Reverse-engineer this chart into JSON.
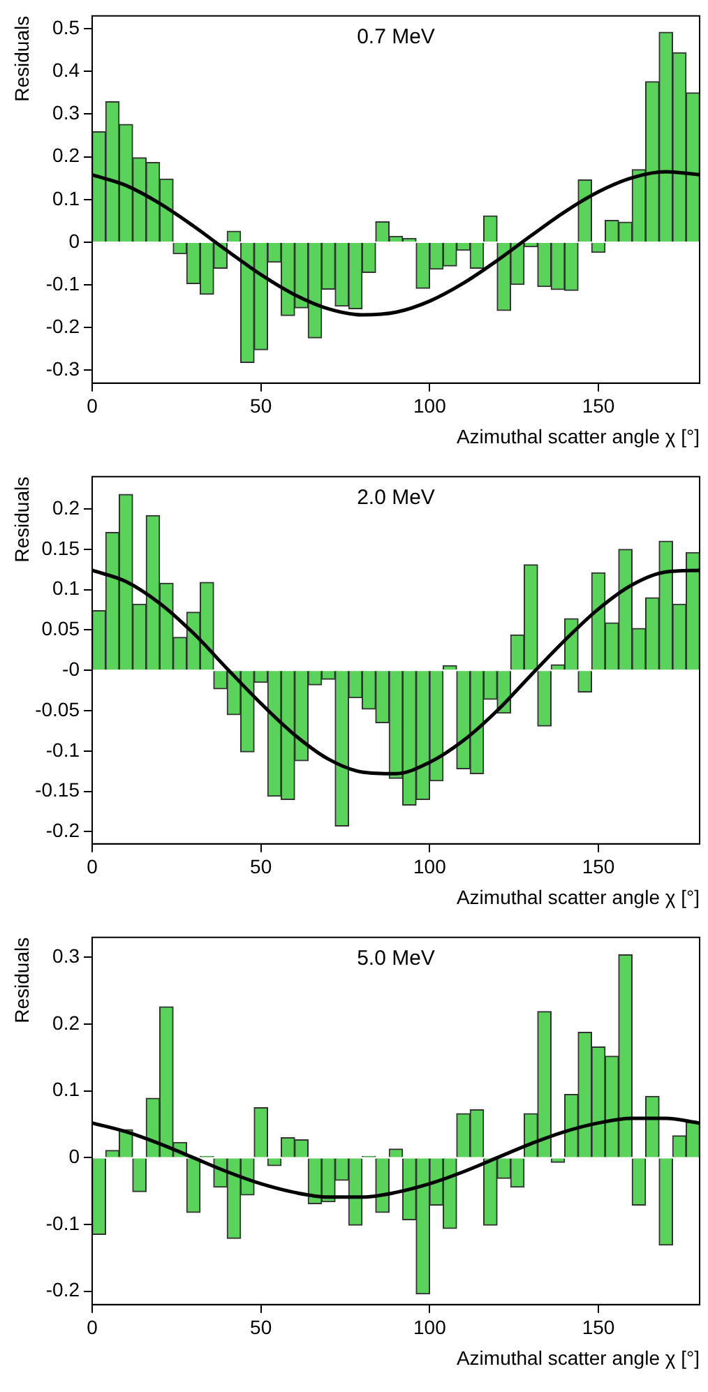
{
  "chart_data": [
    {
      "type": "histogram",
      "title": "0.7 MeV",
      "xlabel": "Azimuthal scatter angle χ [°]",
      "ylabel": "Residuals",
      "legend": false,
      "grid": false,
      "xlim": [
        0,
        180
      ],
      "xticks": [
        0,
        50,
        100,
        150
      ],
      "ylim": [
        -0.33,
        0.53
      ],
      "yticks": [
        -0.3,
        -0.2,
        -0.1,
        0,
        0.1,
        0.2,
        0.3,
        0.4,
        0.5
      ],
      "bins": [
        0,
        4,
        8,
        12,
        16,
        20,
        24,
        28,
        32,
        36,
        40,
        44,
        48,
        52,
        56,
        60,
        64,
        68,
        72,
        76,
        80,
        84,
        88,
        92,
        96,
        100,
        104,
        108,
        112,
        116,
        120,
        124,
        128,
        132,
        136,
        140,
        144,
        148,
        152,
        156,
        160,
        164,
        168,
        172,
        176,
        180
      ],
      "series": [
        {
          "color": "#59d359",
          "values": [
            0.259,
            0.329,
            0.276,
            0.198,
            0.187,
            0.148,
            -0.027,
            -0.097,
            -0.122,
            -0.061,
            0.026,
            -0.282,
            -0.252,
            -0.047,
            -0.172,
            -0.154,
            -0.224,
            -0.11,
            -0.15,
            -0.156,
            -0.071,
            0.048,
            0.014,
            0.009,
            -0.108,
            -0.063,
            -0.056,
            -0.019,
            -0.061,
            0.062,
            -0.16,
            -0.099,
            -0.011,
            -0.104,
            -0.111,
            -0.113,
            0.146,
            -0.024,
            0.051,
            0.047,
            0.17,
            0.376,
            0.492,
            0.444,
            0.35
          ]
        },
        {
          "type": "line",
          "color": "#000000",
          "x": [
            0,
            10,
            20,
            30,
            40,
            50,
            60,
            70,
            80,
            90,
            100,
            110,
            120,
            130,
            140,
            150,
            160,
            170,
            180
          ],
          "values": [
            0.158,
            0.133,
            0.091,
            0.038,
            -0.02,
            -0.076,
            -0.123,
            -0.156,
            -0.17,
            -0.164,
            -0.138,
            -0.096,
            -0.043,
            0.015,
            0.071,
            0.118,
            0.151,
            0.165,
            0.158
          ]
        }
      ]
    },
    {
      "type": "histogram",
      "title": "2.0 MeV",
      "xlabel": "Azimuthal scatter angle χ [°]",
      "ylabel": "Residuals",
      "legend": false,
      "grid": false,
      "xlim": [
        0,
        180
      ],
      "xticks": [
        0,
        50,
        100,
        150
      ],
      "ylim": [
        -0.215,
        0.24
      ],
      "yticks": [
        -0.2,
        -0.15,
        -0.1,
        -0.05,
        {
          "value": 0,
          "label": "-0"
        },
        0.05,
        0.1,
        0.15,
        0.2
      ],
      "bins": [
        0,
        4,
        8,
        12,
        16,
        20,
        24,
        28,
        32,
        36,
        40,
        44,
        48,
        52,
        56,
        60,
        64,
        68,
        72,
        76,
        80,
        84,
        88,
        92,
        96,
        100,
        104,
        108,
        112,
        116,
        120,
        124,
        128,
        132,
        136,
        140,
        144,
        148,
        152,
        156,
        160,
        164,
        168,
        172,
        176,
        180
      ],
      "series": [
        {
          "color": "#59d359",
          "values": [
            0.074,
            0.171,
            0.218,
            0.082,
            0.192,
            0.108,
            0.041,
            0.072,
            0.109,
            -0.023,
            -0.055,
            -0.101,
            -0.015,
            -0.156,
            -0.16,
            -0.112,
            -0.018,
            -0.011,
            -0.193,
            -0.034,
            -0.048,
            -0.065,
            -0.134,
            -0.167,
            -0.16,
            -0.137,
            0.006,
            -0.122,
            -0.128,
            -0.036,
            -0.053,
            0.044,
            0.131,
            -0.069,
            0.007,
            0.064,
            -0.027,
            0.121,
            0.059,
            0.15,
            0.052,
            0.09,
            0.16,
            0.082,
            0.146
          ]
        },
        {
          "type": "line",
          "color": "#000000",
          "x": [
            0,
            10,
            20,
            30,
            40,
            50,
            60,
            70,
            80,
            90,
            100,
            110,
            120,
            130,
            140,
            150,
            160,
            170,
            180
          ],
          "values": [
            0.124,
            0.11,
            0.083,
            0.046,
            0.002,
            -0.041,
            -0.08,
            -0.11,
            -0.126,
            -0.128,
            -0.114,
            -0.087,
            -0.05,
            -0.006,
            0.037,
            0.076,
            0.106,
            0.122,
            0.124
          ]
        }
      ]
    },
    {
      "type": "histogram",
      "title": "5.0 MeV",
      "xlabel": "Azimuthal scatter angle χ [°]",
      "ylabel": "Residuals",
      "legend": false,
      "grid": false,
      "xlim": [
        0,
        180
      ],
      "xticks": [
        0,
        50,
        100,
        150
      ],
      "ylim": [
        -0.22,
        0.33
      ],
      "yticks": [
        -0.2,
        -0.1,
        0,
        0.1,
        0.2,
        0.3
      ],
      "bins": [
        0,
        4,
        8,
        12,
        16,
        20,
        24,
        28,
        32,
        36,
        40,
        44,
        48,
        52,
        56,
        60,
        64,
        68,
        72,
        76,
        80,
        84,
        88,
        92,
        96,
        100,
        104,
        108,
        112,
        116,
        120,
        124,
        128,
        132,
        136,
        140,
        144,
        148,
        152,
        156,
        160,
        164,
        168,
        172,
        176,
        180
      ],
      "series": [
        {
          "color": "#59d359",
          "values": [
            -0.115,
            0.011,
            0.042,
            -0.051,
            0.089,
            0.226,
            0.023,
            -0.082,
            0.002,
            -0.044,
            -0.121,
            -0.056,
            0.075,
            -0.012,
            0.03,
            0.027,
            -0.069,
            -0.066,
            -0.034,
            -0.101,
            0.002,
            -0.082,
            0.013,
            -0.093,
            -0.204,
            -0.071,
            -0.106,
            0.066,
            0.072,
            -0.101,
            -0.031,
            -0.044,
            0.066,
            0.219,
            -0.007,
            0.095,
            0.188,
            0.166,
            0.152,
            0.304,
            -0.071,
            0.092,
            -0.131,
            0.033,
            0.053
          ]
        },
        {
          "type": "line",
          "color": "#000000",
          "x": [
            0,
            10,
            20,
            30,
            40,
            50,
            60,
            70,
            80,
            90,
            100,
            110,
            120,
            130,
            140,
            150,
            160,
            170,
            180
          ],
          "values": [
            0.052,
            0.039,
            0.021,
            0,
            -0.021,
            -0.039,
            -0.052,
            -0.059,
            -0.059,
            -0.052,
            -0.039,
            -0.021,
            0,
            0.021,
            0.039,
            0.052,
            0.059,
            0.059,
            0.052
          ]
        }
      ]
    }
  ]
}
